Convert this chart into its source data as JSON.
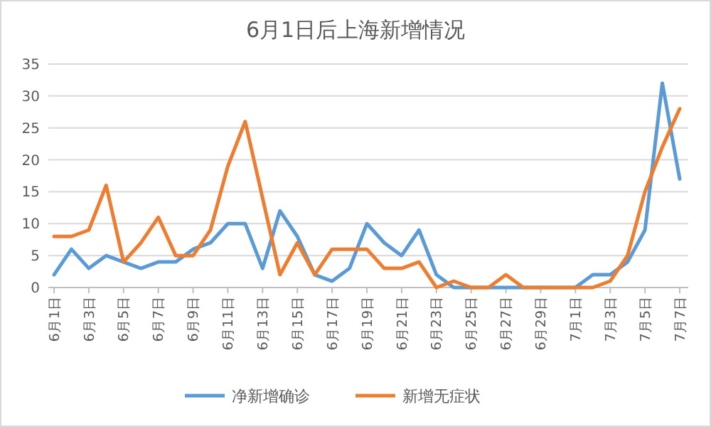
{
  "chart_data": {
    "type": "line",
    "title": "6月1日后上海新增情况",
    "categories": [
      "6月1日",
      null,
      "6月3日",
      null,
      "6月5日",
      null,
      "6月7日",
      null,
      "6月9日",
      null,
      "6月11日",
      null,
      "6月13日",
      null,
      "6月15日",
      null,
      "6月17日",
      null,
      "6月19日",
      null,
      "6月21日",
      null,
      "6月23日",
      null,
      "6月25日",
      null,
      "6月27日",
      null,
      "6月29日",
      null,
      "7月1日",
      null,
      "7月3日",
      null,
      "7月5日",
      null,
      "7月7日"
    ],
    "series": [
      {
        "name": "净新增确诊",
        "color": "#5b9bd5",
        "values": [
          2,
          6,
          3,
          5,
          4,
          3,
          4,
          4,
          6,
          7,
          10,
          10,
          3,
          12,
          8,
          2,
          1,
          3,
          10,
          7,
          5,
          9,
          2,
          0,
          0,
          0,
          0,
          0,
          0,
          0,
          0,
          2,
          2,
          4,
          9,
          32,
          17
        ]
      },
      {
        "name": "新增无症状",
        "color": "#ed7d31",
        "values": [
          8,
          8,
          9,
          16,
          4,
          7,
          11,
          5,
          5,
          9,
          19,
          26,
          14,
          2,
          7,
          2,
          6,
          6,
          6,
          3,
          3,
          4,
          0,
          1,
          0,
          0,
          2,
          0,
          0,
          0,
          0,
          0,
          1,
          5,
          15,
          22,
          28
        ]
      }
    ],
    "ylim": [
      0,
      35
    ],
    "yticks": [
      0,
      5,
      10,
      15,
      20,
      25,
      30,
      35
    ],
    "grid": "y",
    "legend": "bottom",
    "marker": "none",
    "line_style": "solid"
  }
}
